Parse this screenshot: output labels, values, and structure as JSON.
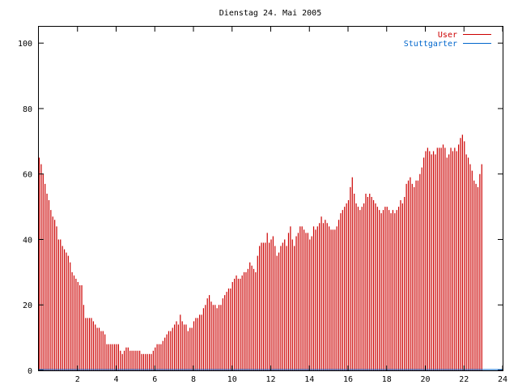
{
  "chart_data": {
    "type": "bar",
    "title": "Dienstag 24. Mai 2005",
    "xlabel": "",
    "ylabel": "",
    "xlim": [
      0,
      24
    ],
    "ylim": [
      0,
      105
    ],
    "xticks": [
      "2",
      "4",
      "6",
      "8",
      "10",
      "12",
      "14",
      "16",
      "18",
      "20",
      "22",
      "24"
    ],
    "yticks": [
      "0",
      "20",
      "40",
      "60",
      "80",
      "100"
    ],
    "legend_position": "top-right",
    "grid": false,
    "bar_interval_hours": 0.1,
    "series": [
      {
        "name": "User",
        "color": "#cc0000",
        "values": [
          65,
          63,
          60,
          57,
          54,
          52,
          49,
          47,
          46,
          44,
          40,
          40,
          38,
          37,
          36,
          35,
          33,
          30,
          29,
          28,
          27,
          26,
          26,
          20,
          16,
          16,
          16,
          16,
          15,
          14,
          13,
          13,
          12,
          12,
          11,
          8,
          8,
          8,
          8,
          8,
          8,
          8,
          6,
          5,
          6,
          7,
          7,
          6,
          6,
          6,
          6,
          6,
          6,
          5,
          5,
          5,
          5,
          5,
          5,
          6,
          7,
          8,
          8,
          8,
          9,
          10,
          11,
          12,
          12,
          13,
          14,
          15,
          14,
          17,
          15,
          14,
          14,
          12,
          13,
          13,
          15,
          16,
          16,
          17,
          17,
          19,
          20,
          22,
          23,
          21,
          20,
          20,
          19,
          20,
          20,
          22,
          23,
          24,
          25,
          25,
          27,
          28,
          29,
          28,
          28,
          29,
          30,
          30,
          31,
          33,
          32,
          31,
          30,
          35,
          38,
          39,
          39,
          39,
          42,
          39,
          40,
          41,
          38,
          35,
          36,
          38,
          39,
          40,
          38,
          42,
          44,
          40,
          38,
          41,
          42,
          44,
          44,
          43,
          42,
          42,
          40,
          41,
          44,
          43,
          44,
          45,
          47,
          45,
          46,
          45,
          44,
          43,
          43,
          43,
          44,
          46,
          48,
          49,
          50,
          51,
          52,
          56,
          59,
          54,
          51,
          50,
          49,
          50,
          51,
          54,
          53,
          54,
          53,
          52,
          51,
          50,
          49,
          48,
          49,
          50,
          50,
          49,
          48,
          49,
          48,
          49,
          50,
          52,
          51,
          53,
          57,
          58,
          59,
          57,
          56,
          58,
          58,
          60,
          62,
          65,
          67,
          68,
          67,
          66,
          67,
          66,
          68,
          68,
          68,
          69,
          68,
          65,
          66,
          68,
          67,
          68,
          67,
          69,
          71,
          72,
          70,
          66,
          65,
          63,
          61,
          58,
          57,
          56,
          60,
          63
        ]
      },
      {
        "name": "Stuttgarter",
        "color": "#0066cc",
        "values": []
      }
    ]
  }
}
